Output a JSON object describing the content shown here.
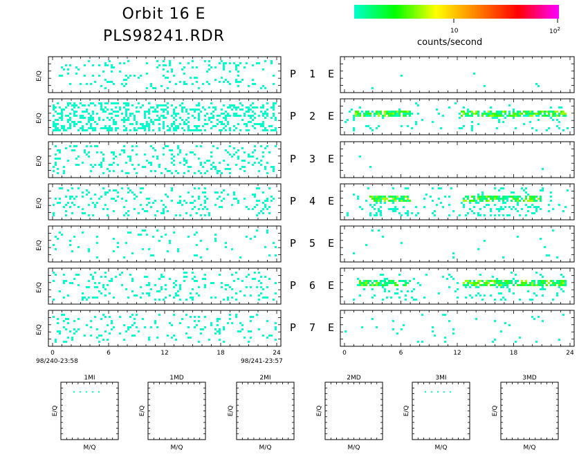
{
  "title": {
    "line1": "Orbit  16  E",
    "line2": "PLS98241.RDR"
  },
  "colorbar": {
    "label": "counts/second",
    "tick_mid": "10",
    "tick_end_base": "10",
    "tick_end_exp": "2",
    "colors": [
      "#00ffcc",
      "#00ff00",
      "#ffff00",
      "#ff8000",
      "#ff0000",
      "#ff00ff"
    ]
  },
  "panel_labels": [
    {
      "p": "P",
      "n": "1",
      "e": "E"
    },
    {
      "p": "P",
      "n": "2",
      "e": "E"
    },
    {
      "p": "P",
      "n": "3",
      "e": "E"
    },
    {
      "p": "P",
      "n": "4",
      "e": "E"
    },
    {
      "p": "P",
      "n": "5",
      "e": "E"
    },
    {
      "p": "P",
      "n": "6",
      "e": "E"
    },
    {
      "p": "P",
      "n": "7",
      "e": "E"
    }
  ],
  "ylabel": "E/Q",
  "xticks": [
    "0",
    "6",
    "12",
    "18",
    "24"
  ],
  "time_start": "98/240-23:58",
  "time_end": "98/241-23:57",
  "mass_panels": [
    {
      "title": "1MI",
      "xlabel": "M/Q",
      "ylabel": "E/Q"
    },
    {
      "title": "1MD",
      "xlabel": "M/Q",
      "ylabel": "E/Q"
    },
    {
      "title": "2MI",
      "xlabel": "M/Q",
      "ylabel": "E/Q"
    },
    {
      "title": "2MD",
      "xlabel": "M/Q",
      "ylabel": "E/Q"
    },
    {
      "title": "3MI",
      "xlabel": "M/Q",
      "ylabel": "E/Q"
    },
    {
      "title": "3MD",
      "xlabel": "M/Q",
      "ylabel": "E/Q"
    }
  ],
  "chart_data": {
    "type": "heatmap",
    "x_range": [
      0,
      24
    ],
    "x_unit": "hours",
    "color_scale": "log counts/second",
    "left_column": [
      {
        "panel": "P 1",
        "density": 0.1,
        "level": "low"
      },
      {
        "panel": "P 2",
        "density": 0.35,
        "level": "low"
      },
      {
        "panel": "P 3",
        "density": 0.14,
        "level": "low"
      },
      {
        "panel": "P 4",
        "density": 0.12,
        "level": "low"
      },
      {
        "panel": "P 5",
        "density": 0.05,
        "level": "low"
      },
      {
        "panel": "P 6",
        "density": 0.12,
        "level": "low"
      },
      {
        "panel": "P 7",
        "density": 0.1,
        "level": "low"
      }
    ],
    "right_column": [
      {
        "panel": "E 1",
        "density": 0.003,
        "bands": []
      },
      {
        "panel": "E 2",
        "density": 0.03,
        "bands": [
          [
            0.8,
            7.0
          ],
          [
            12.3,
            23.7
          ]
        ]
      },
      {
        "panel": "E 3",
        "density": 0.004,
        "bands": []
      },
      {
        "panel": "E 4",
        "density": 0.08,
        "bands": [
          [
            2.5,
            7.0
          ],
          [
            12.5,
            21.0
          ]
        ]
      },
      {
        "panel": "E 5",
        "density": 0.012,
        "bands": []
      },
      {
        "panel": "E 6",
        "density": 0.04,
        "bands": [
          [
            1.5,
            7.0
          ],
          [
            12.5,
            23.7
          ]
        ]
      },
      {
        "panel": "E 7",
        "density": 0.02,
        "bands": []
      }
    ]
  }
}
